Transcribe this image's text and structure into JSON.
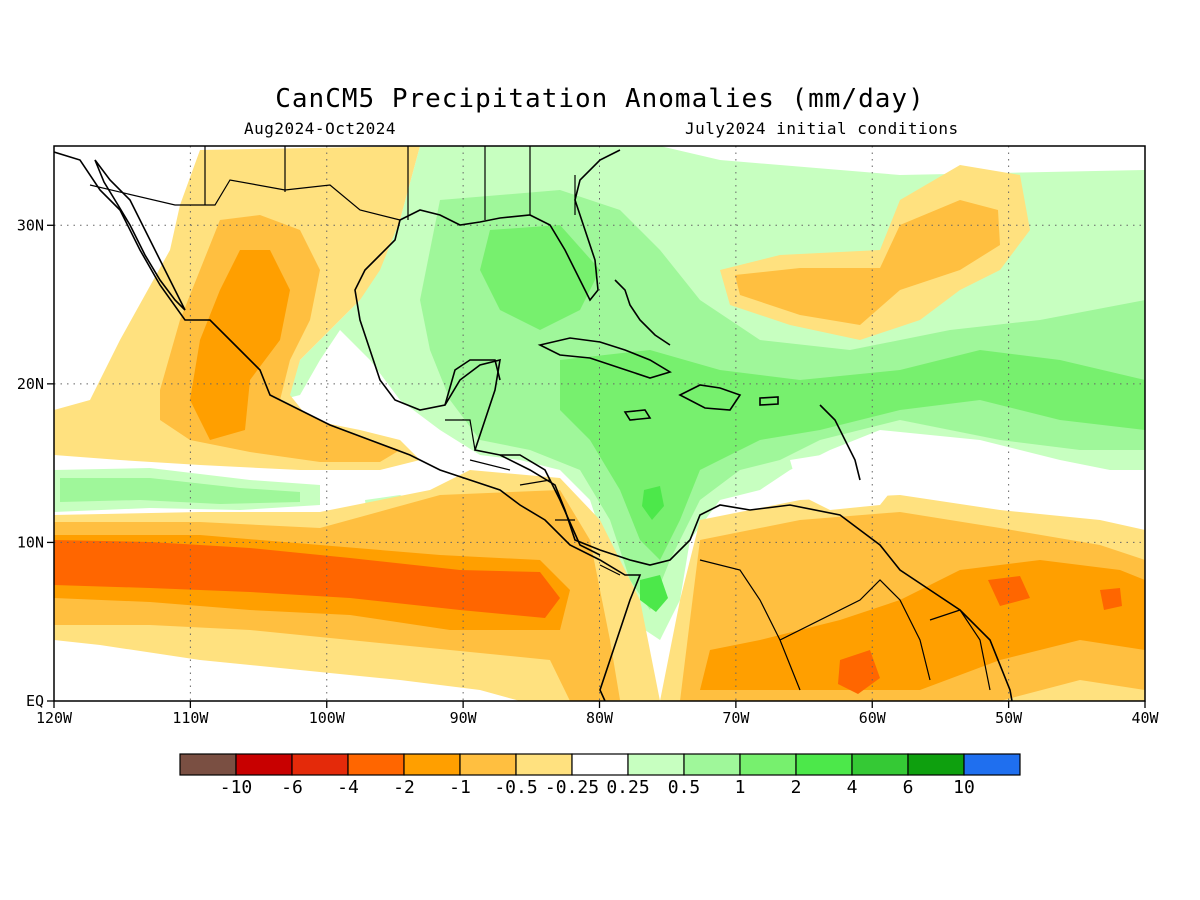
{
  "title": "CanCM5 Precipitation Anomalies (mm/day)",
  "subtitle_left": "Aug2024-Oct2024",
  "subtitle_right": "July2024 initial conditions",
  "map": {
    "lon_range": [
      -120,
      -40
    ],
    "lat_range": [
      0,
      35
    ],
    "lon_ticks": [
      {
        "value": -120,
        "label": "120W"
      },
      {
        "value": -110,
        "label": "110W"
      },
      {
        "value": -100,
        "label": "100W"
      },
      {
        "value": -90,
        "label": "90W"
      },
      {
        "value": -80,
        "label": "80W"
      },
      {
        "value": -70,
        "label": "70W"
      },
      {
        "value": -60,
        "label": "60W"
      },
      {
        "value": -50,
        "label": "50W"
      },
      {
        "value": -40,
        "label": "40W"
      }
    ],
    "lat_ticks": [
      {
        "value": 0,
        "label": "EQ"
      },
      {
        "value": 10,
        "label": "10N"
      },
      {
        "value": 20,
        "label": "20N"
      },
      {
        "value": 30,
        "label": "30N"
      }
    ],
    "gridlines": true
  },
  "colorbar": {
    "colors": [
      "#7a4f42",
      "#c80000",
      "#e42a0a",
      "#ff6600",
      "#ff9f00",
      "#ffbf40",
      "#ffe17f",
      "#ffffff",
      "#c7ffc0",
      "#9ff79a",
      "#77f06e",
      "#4ce84a",
      "#35c935",
      "#0ea00e",
      "#1f6fef"
    ],
    "labels": [
      "-10",
      "-6",
      "-4",
      "-2",
      "-1",
      "-0.5",
      "-0.25",
      "0.25",
      "0.5",
      "1",
      "2",
      "4",
      "6",
      "10"
    ]
  },
  "legend": {
    "c_n4": "#ff6600",
    "c_n3": "#ff9f00",
    "c_n2": "#ffbf40",
    "c_n1": "#ffe17f",
    "c_zero": "#ffffff",
    "c_p1": "#c7ffc0",
    "c_p2": "#9ff79a",
    "c_p3": "#77f06e",
    "c_p4": "#4ce84a"
  }
}
